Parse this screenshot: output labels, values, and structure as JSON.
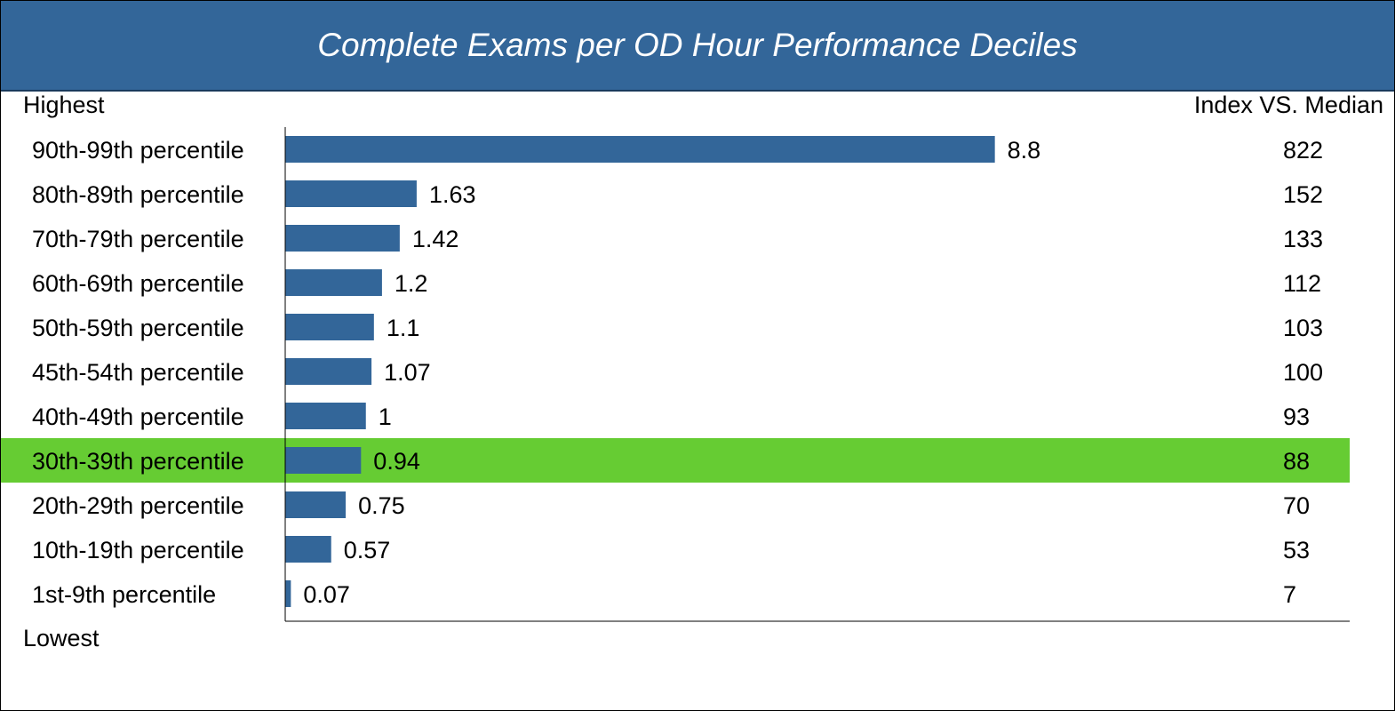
{
  "header": {
    "title": "Complete Exams per OD Hour Performance Deciles"
  },
  "labels": {
    "top": "Highest",
    "bottom": "Lowest",
    "right_header": "Index VS. Median"
  },
  "colors": {
    "header_bg": "#336699",
    "bar": "#336699",
    "highlight": "#66cc33"
  },
  "chart_data": {
    "type": "bar",
    "orientation": "horizontal",
    "title": "Complete Exams per OD Hour Performance Deciles",
    "categories": [
      "90th-99th percentile",
      "80th-89th percentile",
      "70th-79th percentile",
      "60th-69th percentile",
      "50th-59th percentile",
      "45th-54th percentile",
      "40th-49th percentile",
      "30th-39th percentile",
      "20th-29th percentile",
      "10th-19th percentile",
      "1st-9th percentile"
    ],
    "values": [
      8.8,
      1.63,
      1.42,
      1.2,
      1.1,
      1.07,
      1,
      0.94,
      0.75,
      0.57,
      0.07
    ],
    "value_labels": [
      "8.8",
      "1.63",
      "1.42",
      "1.2",
      "1.1",
      "1.07",
      "1",
      "0.94",
      "0.75",
      "0.57",
      "0.07"
    ],
    "index_vs_median": [
      "822",
      "152",
      "133",
      "112",
      "103",
      "100",
      "93",
      "88",
      "70",
      "53",
      "7"
    ],
    "highlighted_category": "30th-39th percentile",
    "xlim": [
      0,
      13.2
    ],
    "grid": false,
    "legend": "none"
  }
}
